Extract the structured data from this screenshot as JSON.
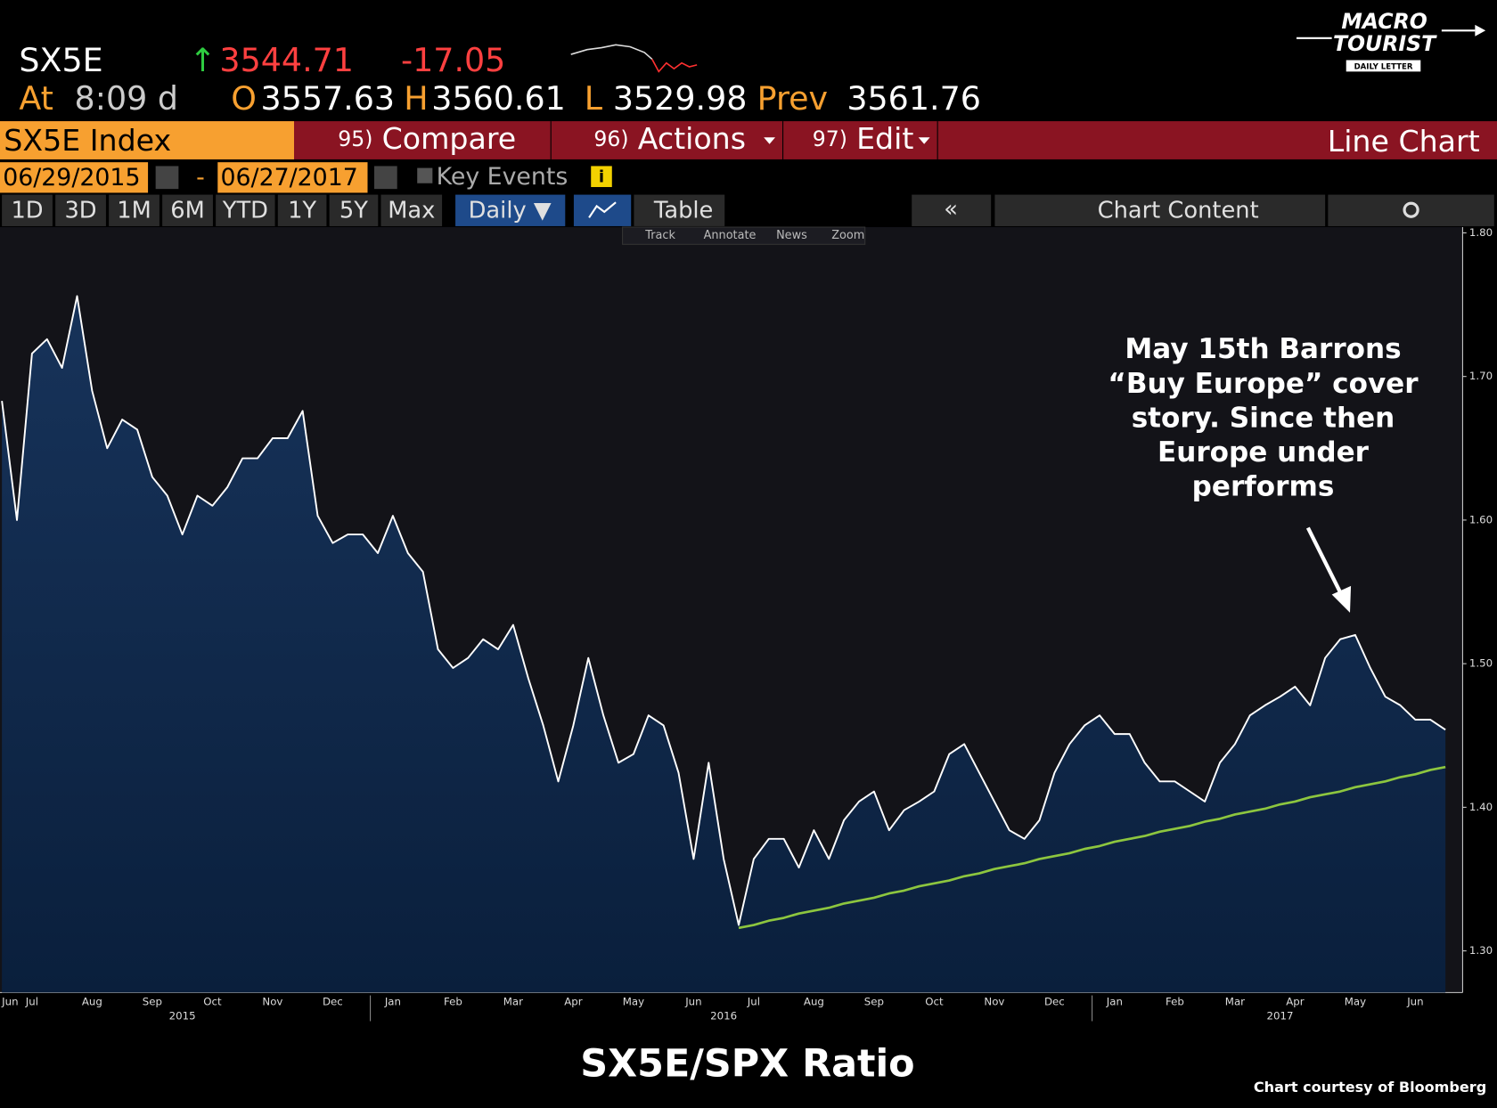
{
  "header": {
    "ticker": "SX5E",
    "last": "3544.71",
    "change": "-17.05",
    "at_label": "At",
    "time": "8:09 d",
    "open_label": "O",
    "open": "3557.63",
    "high_label": "H",
    "high": "3560.61",
    "low_label": "L",
    "low": "3529.98",
    "prev_label": "Prev",
    "prev": "3561.76"
  },
  "logo": {
    "line1": "MACRO",
    "line2": "TOURIST",
    "line3": "DAILY LETTER"
  },
  "toolbar": {
    "security": "SX5E Index",
    "compare_no": "95)",
    "compare": "Compare",
    "actions_no": "96)",
    "actions": "Actions",
    "edit_no": "97)",
    "edit": "Edit",
    "mode": "Line Chart",
    "start_date": "06/29/2015",
    "date_sep": "-",
    "end_date": "06/27/2017",
    "key_events": "Key Events",
    "ranges": [
      "1D",
      "3D",
      "1M",
      "6M",
      "YTD",
      "1Y",
      "5Y",
      "Max"
    ],
    "period": "Daily ▼",
    "table": "Table",
    "chart_content": "Chart Content"
  },
  "chart_tools": [
    "Track",
    "Annotate",
    "News",
    "Zoom"
  ],
  "chart_data": {
    "type": "area",
    "title": "SX5E/SPX Ratio",
    "credit": "Chart courtesy of Bloomberg",
    "annotation": [
      "May 15th Barrons",
      "“Buy Europe” cover",
      "story.  Since then",
      "Europe under",
      "performs"
    ],
    "categories": [
      "Jun",
      null,
      "Jul",
      null,
      null,
      null,
      "Aug",
      null,
      null,
      null,
      "Sep",
      null,
      null,
      null,
      "Oct",
      null,
      null,
      null,
      "Nov",
      null,
      null,
      null,
      "Dec",
      null,
      null,
      null,
      "Jan",
      null,
      null,
      null,
      "Feb",
      null,
      null,
      null,
      "Mar",
      null,
      null,
      null,
      "Apr",
      null,
      null,
      null,
      "May",
      null,
      null,
      null,
      "Jun",
      null,
      null,
      null,
      "Jul",
      null,
      null,
      null,
      "Aug",
      null,
      null,
      null,
      "Sep",
      null,
      null,
      null,
      "Oct",
      null,
      null,
      null,
      "Nov",
      null,
      null,
      null,
      "Dec",
      null,
      null,
      null,
      "Jan",
      null,
      null,
      null,
      "Feb",
      null,
      null,
      null,
      "Mar",
      null,
      null,
      null,
      "Apr",
      null,
      null,
      null,
      "May",
      null,
      null,
      null,
      "Jun",
      null,
      null
    ],
    "year_categories": [
      null,
      null,
      null,
      null,
      null,
      null,
      null,
      null,
      null,
      null,
      null,
      null,
      "2015",
      null,
      null,
      null,
      null,
      null,
      null,
      null,
      null,
      null,
      null,
      null,
      null,
      null,
      null,
      null,
      null,
      null,
      null,
      null,
      null,
      null,
      null,
      null,
      null,
      null,
      null,
      null,
      null,
      null,
      null,
      null,
      null,
      null,
      null,
      null,
      "2016",
      null,
      null,
      null,
      null,
      null,
      null,
      null,
      null,
      null,
      null,
      null,
      null,
      null,
      null,
      null,
      null,
      null,
      null,
      null,
      null,
      null,
      null,
      null,
      null,
      null,
      null,
      null,
      null,
      null,
      null,
      null,
      null,
      null,
      null,
      null,
      null,
      "2017",
      null,
      null,
      null,
      null,
      null,
      null,
      null,
      null,
      null,
      null,
      null
    ],
    "series": [
      {
        "color": "#ffffff",
        "fill": "#0f2a4e",
        "values": [
          1.683,
          1.6,
          1.716,
          1.726,
          1.706,
          1.756,
          1.69,
          1.65,
          1.67,
          1.663,
          1.63,
          1.617,
          1.59,
          1.617,
          1.61,
          1.623,
          1.643,
          1.643,
          1.657,
          1.657,
          1.676,
          1.603,
          1.584,
          1.59,
          1.59,
          1.577,
          1.603,
          1.577,
          1.564,
          1.51,
          1.497,
          1.504,
          1.517,
          1.51,
          1.527,
          1.49,
          1.457,
          1.418,
          1.457,
          1.504,
          1.464,
          1.431,
          1.437,
          1.464,
          1.457,
          1.424,
          1.364,
          1.431,
          1.364,
          1.318,
          1.364,
          1.378,
          1.378,
          1.358,
          1.384,
          1.364,
          1.391,
          1.404,
          1.411,
          1.384,
          1.398,
          1.404,
          1.411,
          1.437,
          1.444,
          1.424,
          1.404,
          1.384,
          1.378,
          1.391,
          1.424,
          1.444,
          1.457,
          1.464,
          1.451,
          1.451,
          1.431,
          1.418,
          1.418,
          1.411,
          1.404,
          1.431,
          1.444,
          1.464,
          1.471,
          1.477,
          1.484,
          1.471,
          1.504,
          1.517,
          1.52,
          1.497,
          1.477,
          1.471,
          1.461,
          1.461,
          1.454
        ]
      },
      {
        "color": "#8dc63f",
        "values": [
          null,
          null,
          null,
          null,
          null,
          null,
          null,
          null,
          null,
          null,
          null,
          null,
          null,
          null,
          null,
          null,
          null,
          null,
          null,
          null,
          null,
          null,
          null,
          null,
          null,
          null,
          null,
          null,
          null,
          null,
          null,
          null,
          null,
          null,
          null,
          null,
          null,
          null,
          null,
          null,
          null,
          null,
          null,
          null,
          null,
          null,
          null,
          null,
          null,
          1.316,
          1.318,
          1.321,
          1.323,
          1.326,
          1.328,
          1.33,
          1.333,
          1.335,
          1.337,
          1.34,
          1.342,
          1.345,
          1.347,
          1.349,
          1.352,
          1.354,
          1.357,
          1.359,
          1.361,
          1.364,
          1.366,
          1.368,
          1.371,
          1.373,
          1.376,
          1.378,
          1.38,
          1.383,
          1.385,
          1.387,
          1.39,
          1.392,
          1.395,
          1.397,
          1.399,
          1.402,
          1.404,
          1.407,
          1.409,
          1.411,
          1.414,
          1.416,
          1.418,
          1.421,
          1.423,
          1.426,
          1.428
        ]
      }
    ],
    "ylim": [
      1.271,
      1.804
    ],
    "yticks": [
      {
        "value": 1.3,
        "label": "1.30"
      },
      {
        "value": 1.4,
        "label": "1.40"
      },
      {
        "value": 1.5,
        "label": "1.50"
      },
      {
        "value": 1.6,
        "label": "1.60"
      },
      {
        "value": 1.7,
        "label": "1.70"
      },
      {
        "value": 1.8,
        "label": "1.80"
      }
    ],
    "y_axis_side": "right",
    "grid": false
  }
}
